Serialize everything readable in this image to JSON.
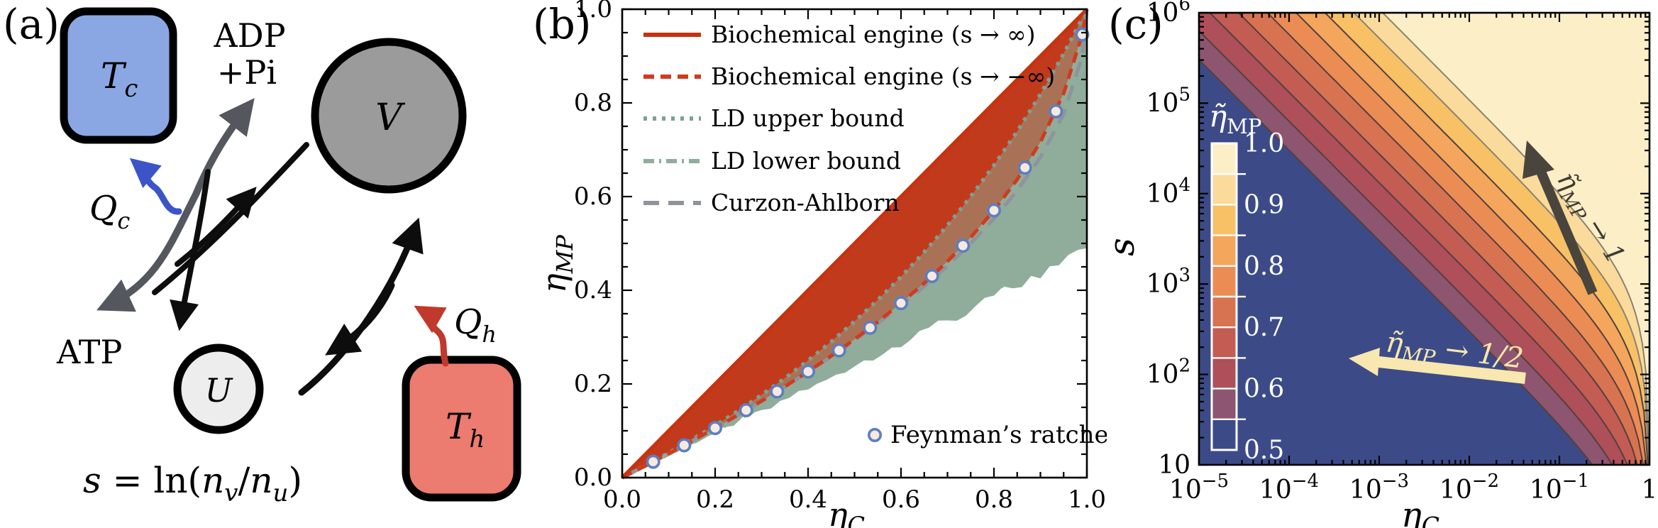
{
  "figure": {
    "panel_a_label": "(a)",
    "panel_b_label": "(b)",
    "panel_c_label": "(c)"
  },
  "panel_a": {
    "colors": {
      "tc_fill": "#8BA7E3",
      "th_fill": "#EC7B70",
      "v_fill": "#9B9B9B",
      "u_fill": "#EDEDED",
      "qc_arrow": "#3B55C8",
      "qh_arrow": "#C0392B",
      "gray_arrow": "#54585E",
      "black": "#0D0D0D"
    },
    "tc": {
      "main": "T",
      "sub": "c"
    },
    "th": {
      "main": "T",
      "sub": "h"
    },
    "v_label": "V",
    "u_label": "U",
    "adp_line1": "ADP",
    "adp_line2": "+Pi",
    "atp": "ATP",
    "qc": {
      "main": "Q",
      "sub": "c"
    },
    "qh": {
      "main": "Q",
      "sub": "h"
    },
    "equation": {
      "s": "s",
      "rel": " = ln(",
      "n1": "n",
      "sub1": "v",
      "slash": "/",
      "n2": "n",
      "sub2": "u",
      "close": ")"
    }
  },
  "chart_data": [
    {
      "type": "line",
      "title": "",
      "xlabel_parts": {
        "main": "η",
        "sub": "C"
      },
      "ylabel_parts": {
        "main": "η",
        "sub": "MP"
      },
      "xlim": [
        0,
        1
      ],
      "ylim": [
        0,
        1
      ],
      "grid": false,
      "legend_position": "upper-left-inside",
      "x_ticks": [
        0,
        0.2,
        0.4,
        0.6,
        0.8,
        1.0
      ],
      "x_tick_labels": [
        "0.0",
        "0.2",
        "0.4",
        "0.6",
        "0.8",
        "1.0"
      ],
      "y_ticks": [
        0,
        0.2,
        0.4,
        0.6,
        0.8,
        1.0
      ],
      "y_tick_labels": [
        "0.0",
        "0.2",
        "0.4",
        "0.6",
        "0.8",
        "1.0"
      ],
      "minor_tick_step": 0.05,
      "x": [
        0,
        0.05,
        0.1,
        0.15,
        0.2,
        0.25,
        0.3,
        0.35,
        0.4,
        0.45,
        0.5,
        0.55,
        0.6,
        0.65,
        0.7,
        0.75,
        0.8,
        0.85,
        0.9,
        0.95,
        0.99,
        1
      ],
      "series": [
        {
          "name": "Biochemical engine (s → ∞)",
          "style": "solid",
          "color": "#C5330F",
          "width": 5,
          "y": [
            0,
            0.05,
            0.1,
            0.15,
            0.2,
            0.25,
            0.3,
            0.35,
            0.4,
            0.45,
            0.5,
            0.55,
            0.6,
            0.65,
            0.7,
            0.75,
            0.8,
            0.85,
            0.9,
            0.95,
            0.99,
            1
          ]
        },
        {
          "name": "Biochemical engine (s → −∞)",
          "style": "dashed",
          "color": "#CF3B20",
          "width": 5,
          "y": [
            0,
            0.0253,
            0.0513,
            0.0781,
            0.1057,
            0.1342,
            0.1637,
            0.1944,
            0.2265,
            0.26,
            0.2953,
            0.3327,
            0.3725,
            0.4153,
            0.4617,
            0.513,
            0.5705,
            0.6368,
            0.7166,
            0.8206,
            0.946,
            1
          ]
        },
        {
          "name": "LD upper bound",
          "style": "dotted",
          "color": "#7FA091",
          "width": 5.5,
          "y": [
            0,
            0.0256,
            0.0526,
            0.0811,
            0.1111,
            0.1429,
            0.1765,
            0.2121,
            0.25,
            0.2903,
            0.3333,
            0.3793,
            0.4286,
            0.4815,
            0.5385,
            0.6,
            0.6667,
            0.7391,
            0.8182,
            0.9048,
            0.9802,
            1
          ]
        },
        {
          "name": "LD lower bound",
          "style": "dashdot",
          "color": "#8FAC9C",
          "width": 5,
          "y": [
            0,
            0.025,
            0.05,
            0.075,
            0.1,
            0.125,
            0.15,
            0.175,
            0.2,
            0.225,
            0.25,
            0.275,
            0.3,
            0.325,
            0.35,
            0.375,
            0.4,
            0.425,
            0.45,
            0.475,
            0.495,
            0.5
          ]
        },
        {
          "name": "Curzon-Ahlborn",
          "style": "longdash",
          "color": "#8F939C",
          "width": 5,
          "y": [
            0,
            0.0253,
            0.0513,
            0.078,
            0.1056,
            0.134,
            0.1633,
            0.1938,
            0.2254,
            0.2584,
            0.2929,
            0.3292,
            0.3675,
            0.4084,
            0.4523,
            0.5,
            0.5528,
            0.6127,
            0.6838,
            0.7764,
            0.9,
            1
          ]
        }
      ],
      "regions": [
        {
          "name": "biochemical-engine-region",
          "fill": "#C23A1C",
          "upper": 0,
          "lower": 2
        },
        {
          "name": "overlap-region",
          "fill": "#A97257",
          "upper": 2,
          "lower": 1
        },
        {
          "name": "low-dissipation-region",
          "fill": "#8FAD9A",
          "upper": 2,
          "lower": 3,
          "ragged_lower": true
        }
      ],
      "scatter": {
        "name": "Feynman’s ratchet",
        "marker": "open-circle",
        "ring_color": "#5B7FC0",
        "fill_color": "#F7E9E0",
        "x": [
          0.0667,
          0.1333,
          0.2,
          0.2667,
          0.3333,
          0.4,
          0.4667,
          0.5333,
          0.6,
          0.6667,
          0.7333,
          0.8,
          0.8667,
          0.9333,
          0.99
        ],
        "y": [
          0.0339,
          0.069,
          0.1057,
          0.1439,
          0.184,
          0.2265,
          0.2716,
          0.3199,
          0.3725,
          0.4303,
          0.4952,
          0.5705,
          0.6617,
          0.782,
          0.946
        ]
      },
      "zero_line_color": "#9A9A9A"
    },
    {
      "type": "heatmap",
      "subtype": "contour",
      "xlabel_parts": {
        "main": "η",
        "sub": "C"
      },
      "ylabel": "s",
      "x_log_range": [
        -5,
        0
      ],
      "y_log_range": [
        1,
        6
      ],
      "x_tick_labels": [
        [
          "10",
          "−5"
        ],
        [
          "10",
          "−4"
        ],
        [
          "10",
          "−3"
        ],
        [
          "10",
          "−2"
        ],
        [
          "10",
          "−1"
        ],
        [
          "1",
          ""
        ]
      ],
      "y_tick_labels": [
        [
          "10",
          ""
        ],
        [
          "10",
          "2"
        ],
        [
          "10",
          "3"
        ],
        [
          "10",
          "4"
        ],
        [
          "10",
          "5"
        ],
        [
          "10",
          "6"
        ]
      ],
      "contour_levels": [
        0.55,
        0.6,
        0.65,
        0.7,
        0.75,
        0.8,
        0.85,
        0.9,
        0.95
      ],
      "contour_C": [
        3.02,
        6.31,
        13.2,
        27.5,
        57.5,
        120,
        251,
        525,
        1096
      ],
      "band_colors": [
        "#3C4B88",
        "#8D5570",
        "#AE4F59",
        "#C35C52",
        "#D77351",
        "#EC8C55",
        "#F3A65C",
        "#F8C166",
        "#FBDB9B",
        "#FCEFC7"
      ],
      "contour_line_dark": "#53403E",
      "contour_line_light": "#8A8272",
      "colorbar": {
        "title_parts": {
          "eta": "η̃",
          "sub": "MP"
        },
        "range": [
          0.5,
          1.0
        ],
        "labels": [
          "1.0",
          "0.9",
          "0.8",
          "0.7",
          "0.6",
          "0.5"
        ],
        "text_color": "#FFFFFF"
      },
      "annotations": [
        {
          "name": "eta-to-1",
          "eta": "η̃",
          "sub": "MP",
          "rest": " → 1",
          "color": "#3F3A33",
          "arrow_color": "#4A453C"
        },
        {
          "name": "eta-to-half",
          "eta": "η̃",
          "sub": "MP",
          "rest": " → 1/2",
          "color": "#F8E7AE",
          "arrow_color": "#F8E7AE"
        }
      ]
    }
  ]
}
